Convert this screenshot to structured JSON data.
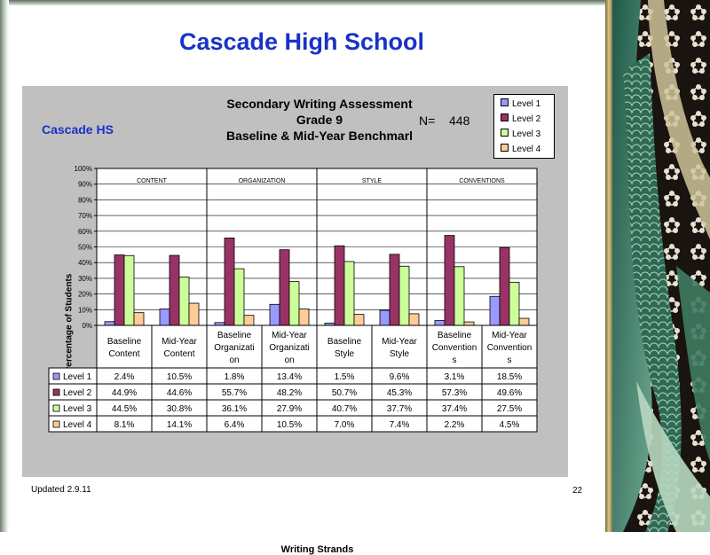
{
  "slide": {
    "title": "Cascade High School",
    "footer": "Updated  2.9.11",
    "page_number": "22"
  },
  "chart_data": {
    "type": "bar",
    "title_lines": [
      "Secondary Writing Assessment",
      "Grade 9",
      "Baseline & Mid-Year Benchmarl"
    ],
    "school_label": "Cascade HS",
    "n_label": "N=",
    "n_value": "448",
    "xlabel": "Writing Strands",
    "ylabel": "Percentage of Students",
    "ylim": [
      0,
      100
    ],
    "y_ticks": [
      "0%",
      "10%",
      "20%",
      "30%",
      "40%",
      "50%",
      "60%",
      "70%",
      "80%",
      "90%",
      "100%"
    ],
    "groups": [
      "CONTENT",
      "ORGANIZATION",
      "STYLE",
      "CONVENTIONS"
    ],
    "categories": [
      [
        "Baseline",
        "Content"
      ],
      [
        "Mid-Year",
        "Content"
      ],
      [
        "Baseline",
        "Organizati",
        "on"
      ],
      [
        "Mid-Year",
        "Organizati",
        "on"
      ],
      [
        "Baseline",
        "Style"
      ],
      [
        "Mid-Year",
        "Style"
      ],
      [
        "Baseline",
        "Convention",
        "s"
      ],
      [
        "Mid-Year",
        "Convention",
        "s"
      ]
    ],
    "series": [
      {
        "name": "Level 1",
        "color": "#9999ff",
        "values": [
          2.4,
          10.5,
          1.8,
          13.4,
          1.5,
          9.6,
          3.1,
          18.5
        ],
        "labels": [
          "2.4%",
          "10.5%",
          "1.8%",
          "13.4%",
          "1.5%",
          "9.6%",
          "3.1%",
          "18.5%"
        ]
      },
      {
        "name": "Level 2",
        "color": "#993366",
        "values": [
          44.9,
          44.6,
          55.7,
          48.2,
          50.7,
          45.3,
          57.3,
          49.6
        ],
        "labels": [
          "44.9%",
          "44.6%",
          "55.7%",
          "48.2%",
          "50.7%",
          "45.3%",
          "57.3%",
          "49.6%"
        ]
      },
      {
        "name": "Level 3",
        "color": "#ccff99",
        "values": [
          44.5,
          30.8,
          36.1,
          27.9,
          40.7,
          37.7,
          37.4,
          27.5
        ],
        "labels": [
          "44.5%",
          "30.8%",
          "36.1%",
          "27.9%",
          "40.7%",
          "37.7%",
          "37.4%",
          "27.5%"
        ]
      },
      {
        "name": "Level 4",
        "color": "#ffcc99",
        "values": [
          8.1,
          14.1,
          6.4,
          10.5,
          7.0,
          7.4,
          2.2,
          4.5
        ],
        "labels": [
          "8.1%",
          "14.1%",
          "6.4%",
          "10.5%",
          "7.0%",
          "7.4%",
          "2.2%",
          "4.5%"
        ]
      }
    ],
    "grid": true,
    "legend_position": "top-right"
  }
}
